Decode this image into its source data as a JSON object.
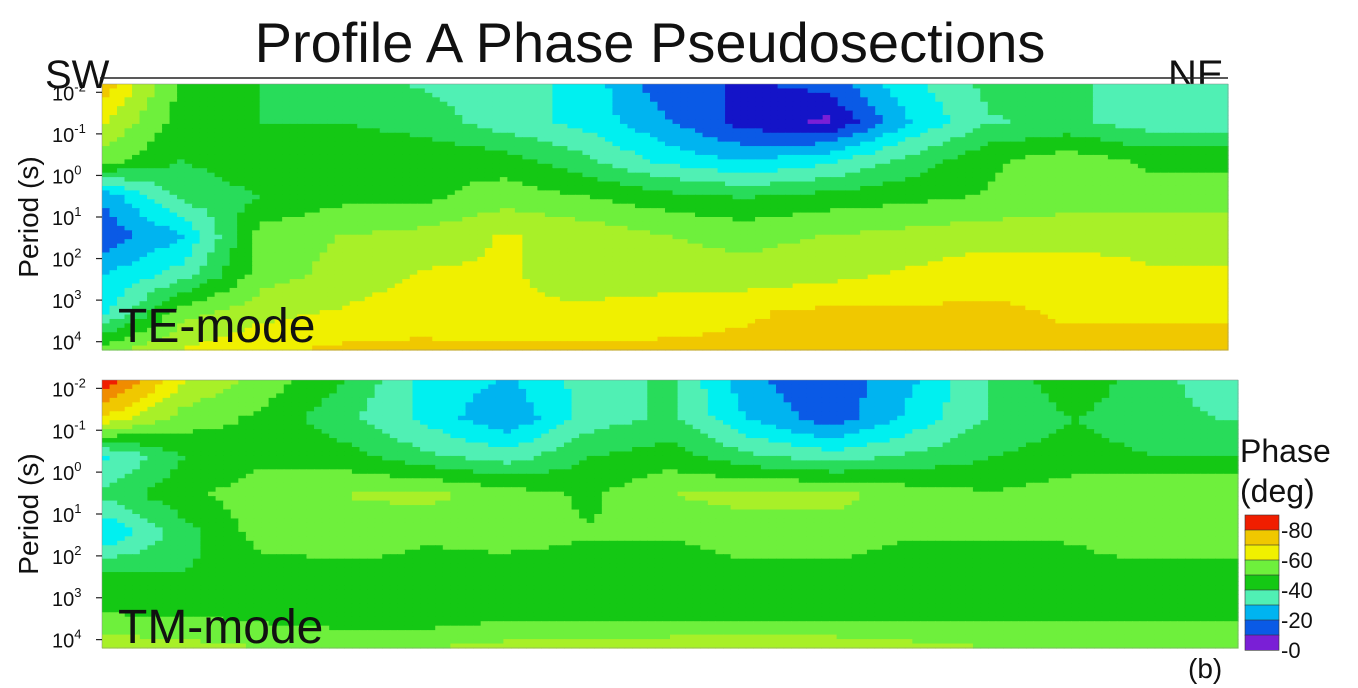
{
  "title": "Profile A Phase Pseudosections",
  "direction_left": "SW",
  "direction_right": "NE",
  "panel_letter": "(b)",
  "colors": {
    "bands": [
      "#7a1fd6",
      "#1414c8",
      "#0a5ae6",
      "#00b4f0",
      "#00f0f0",
      "#50f0b4",
      "#28dc5a",
      "#14c814",
      "#6ef03c",
      "#a8f028",
      "#f0f000",
      "#f0c800",
      "#f08c00",
      "#f01e00"
    ]
  },
  "chart_data": {
    "type": "heatmap",
    "ylabel": "Period (s)",
    "y_ticks": [
      {
        "base": "10",
        "exp": "-2"
      },
      {
        "base": "10",
        "exp": "-1"
      },
      {
        "base": "10",
        "exp": "0"
      },
      {
        "base": "10",
        "exp": "1"
      },
      {
        "base": "10",
        "exp": "2"
      },
      {
        "base": "10",
        "exp": "3"
      },
      {
        "base": "10",
        "exp": "4"
      }
    ],
    "y_exponent_range": [
      -2.2,
      4.2
    ],
    "y_scale": "log",
    "panels": [
      {
        "label": "TE-mode",
        "nx": 15,
        "ny": 8,
        "grid": [
          [
            75,
            50,
            45,
            40,
            38,
            35,
            30,
            15,
            12,
            15,
            30,
            40,
            40,
            35,
            35
          ],
          [
            65,
            48,
            45,
            45,
            42,
            35,
            30,
            20,
            10,
            5,
            25,
            38,
            40,
            35,
            35
          ],
          [
            55,
            45,
            50,
            50,
            50,
            48,
            40,
            30,
            25,
            30,
            40,
            50,
            55,
            50,
            50
          ],
          [
            20,
            40,
            45,
            50,
            50,
            55,
            52,
            48,
            45,
            48,
            50,
            52,
            55,
            55,
            55
          ],
          [
            15,
            25,
            55,
            58,
            60,
            65,
            62,
            58,
            56,
            58,
            60,
            62,
            62,
            62,
            62
          ],
          [
            25,
            35,
            55,
            60,
            65,
            65,
            62,
            60,
            60,
            62,
            65,
            68,
            68,
            65,
            65
          ],
          [
            30,
            55,
            62,
            65,
            68,
            65,
            65,
            68,
            70,
            72,
            72,
            72,
            70,
            70,
            70
          ],
          [
            55,
            65,
            70,
            72,
            72,
            72,
            72,
            72,
            72,
            72,
            72,
            72,
            72,
            72,
            72
          ]
        ]
      },
      {
        "label": "TM-mode",
        "nx": 15,
        "ny": 8,
        "grid": [
          [
            90,
            65,
            55,
            45,
            30,
            25,
            35,
            40,
            20,
            15,
            25,
            40,
            50,
            40,
            35
          ],
          [
            70,
            55,
            50,
            40,
            30,
            20,
            35,
            40,
            25,
            15,
            28,
            40,
            45,
            40,
            38
          ],
          [
            30,
            45,
            50,
            48,
            40,
            35,
            45,
            48,
            40,
            35,
            40,
            45,
            48,
            45,
            45
          ],
          [
            40,
            50,
            55,
            58,
            60,
            55,
            50,
            58,
            60,
            60,
            55,
            52,
            55,
            58,
            58
          ],
          [
            25,
            42,
            55,
            55,
            52,
            55,
            52,
            52,
            55,
            55,
            52,
            52,
            52,
            55,
            55
          ],
          [
            45,
            45,
            48,
            50,
            50,
            48,
            48,
            48,
            50,
            50,
            48,
            48,
            50,
            50,
            50
          ],
          [
            50,
            50,
            48,
            45,
            45,
            48,
            48,
            48,
            48,
            48,
            48,
            48,
            48,
            48,
            48
          ],
          [
            62,
            60,
            58,
            58,
            58,
            60,
            60,
            62,
            62,
            62,
            60,
            58,
            58,
            58,
            58
          ]
        ]
      }
    ],
    "colorbar": {
      "label_line1": "Phase",
      "label_line2": "(deg)",
      "min": 0,
      "max": 90,
      "step": 10,
      "tick_labels": [
        "-80",
        "-60",
        "-40",
        "-20",
        "-0"
      ],
      "tick_values": [
        80,
        60,
        40,
        20,
        0
      ]
    }
  }
}
